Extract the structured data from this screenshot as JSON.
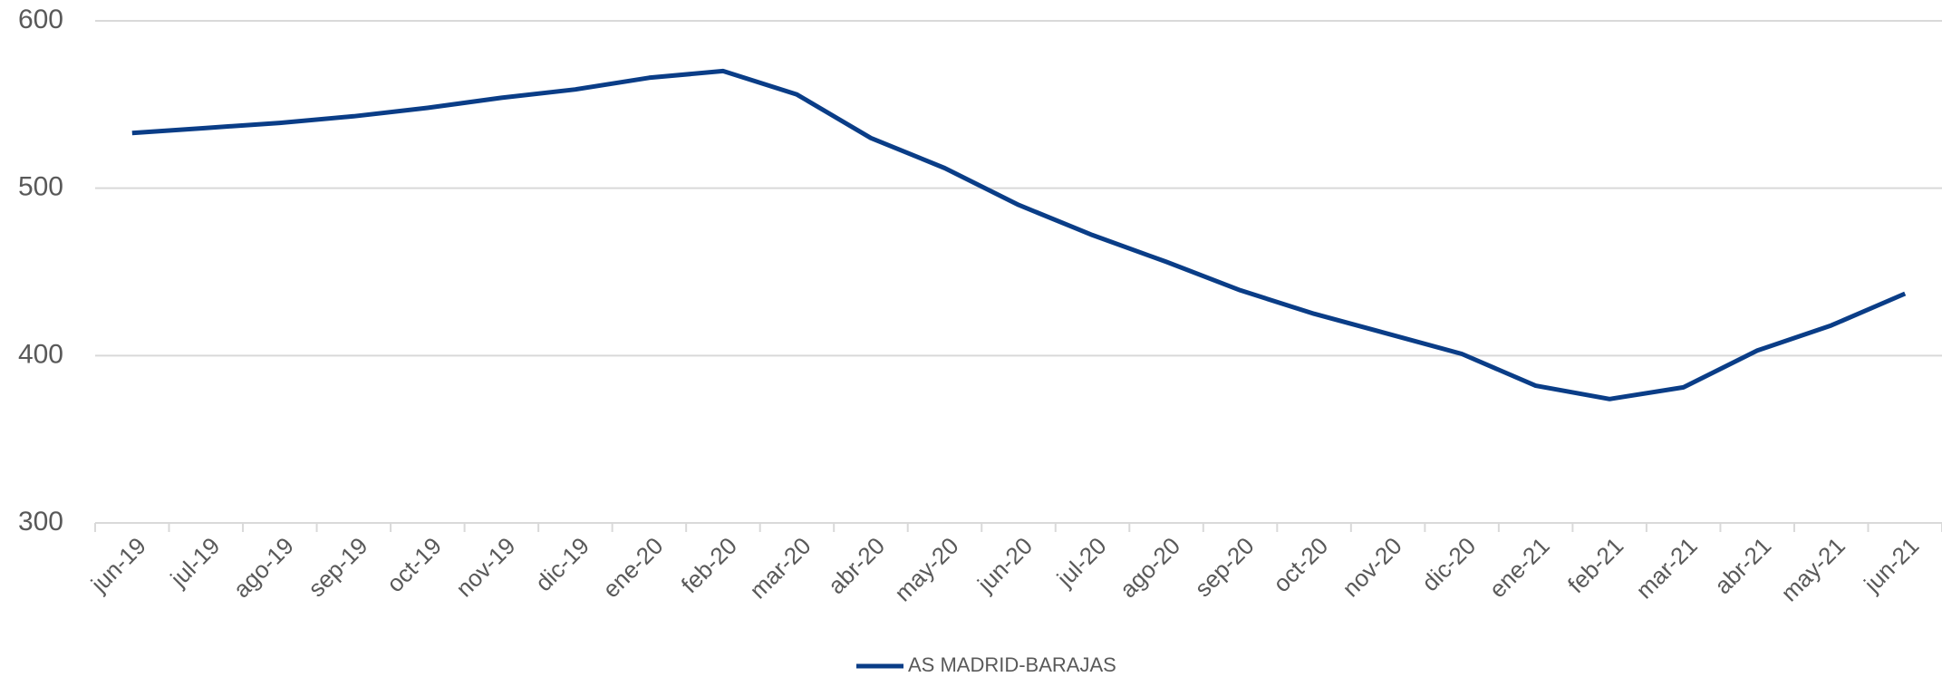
{
  "chart_data": {
    "type": "line",
    "categories": [
      "jun-19",
      "jul-19",
      "ago-19",
      "sep-19",
      "oct-19",
      "nov-19",
      "dic-19",
      "ene-20",
      "feb-20",
      "mar-20",
      "abr-20",
      "may-20",
      "jun-20",
      "jul-20",
      "ago-20",
      "sep-20",
      "oct-20",
      "nov-20",
      "dic-20",
      "ene-21",
      "feb-21",
      "mar-21",
      "abr-21",
      "may-21",
      "jun-21"
    ],
    "series": [
      {
        "name": "AS MADRID-BARAJAS",
        "color": "#0a3d87",
        "values": [
          533,
          536,
          539,
          543,
          548,
          554,
          559,
          566,
          570,
          556,
          530,
          512,
          490,
          472,
          456,
          439,
          425,
          413,
          401,
          382,
          374,
          381,
          403,
          418,
          437
        ]
      }
    ],
    "ylim": [
      300,
      600
    ],
    "yticks": [
      300,
      400,
      500,
      600
    ],
    "grid": true,
    "legend": "bottom"
  }
}
